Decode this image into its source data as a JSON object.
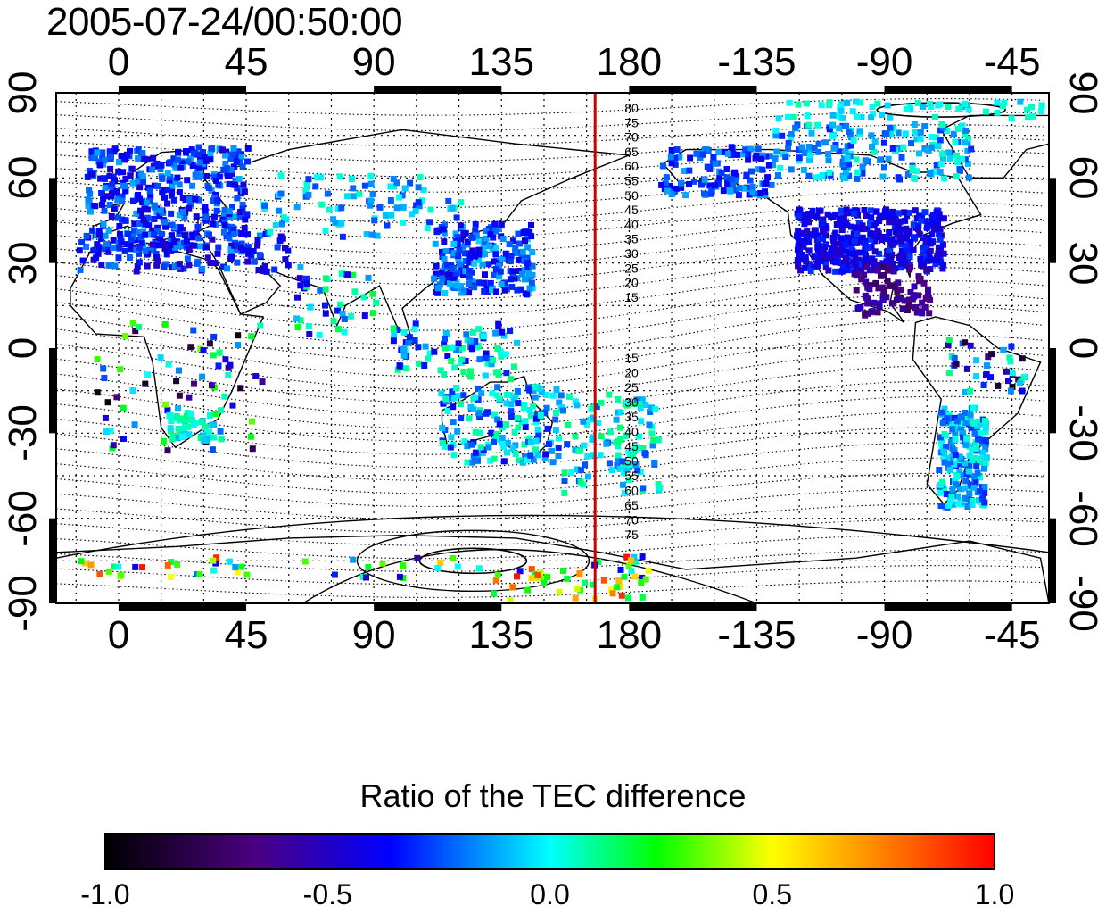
{
  "title": "2005-07-24/00:50:00",
  "x_tick_labels": [
    "0",
    "45",
    "90",
    "135",
    "180",
    "-135",
    "-90",
    "-45"
  ],
  "y_tick_labels": [
    "90",
    "60",
    "30",
    "0",
    "-30",
    "-60",
    "-90"
  ],
  "contour_labels_north": [
    "80",
    "75",
    "70",
    "65",
    "60",
    "55",
    "50",
    "45",
    "40",
    "35",
    "30",
    "25",
    "20",
    "15"
  ],
  "contour_labels_south": [
    "15",
    "20",
    "25",
    "30",
    "35",
    "40",
    "45",
    "50",
    "55",
    "60",
    "65",
    "70",
    "75"
  ],
  "colorbar": {
    "title": "Ratio of the TEC difference",
    "tick_labels": [
      "-1.0",
      "-0.5",
      "0.0",
      "0.5",
      "1.0"
    ],
    "stops": [
      "#000000",
      "#4b0082",
      "#0000ff",
      "#00ffff",
      "#00ff00",
      "#ffff00",
      "#ff0000"
    ]
  },
  "colors": {
    "meridian_line": "#cc0000",
    "frame": "#000000",
    "grid": "#000000"
  },
  "map": {
    "lon_range": [
      -22,
      328
    ],
    "lat_range": [
      -90,
      90
    ],
    "vertical_meridian_lon": 168
  }
}
